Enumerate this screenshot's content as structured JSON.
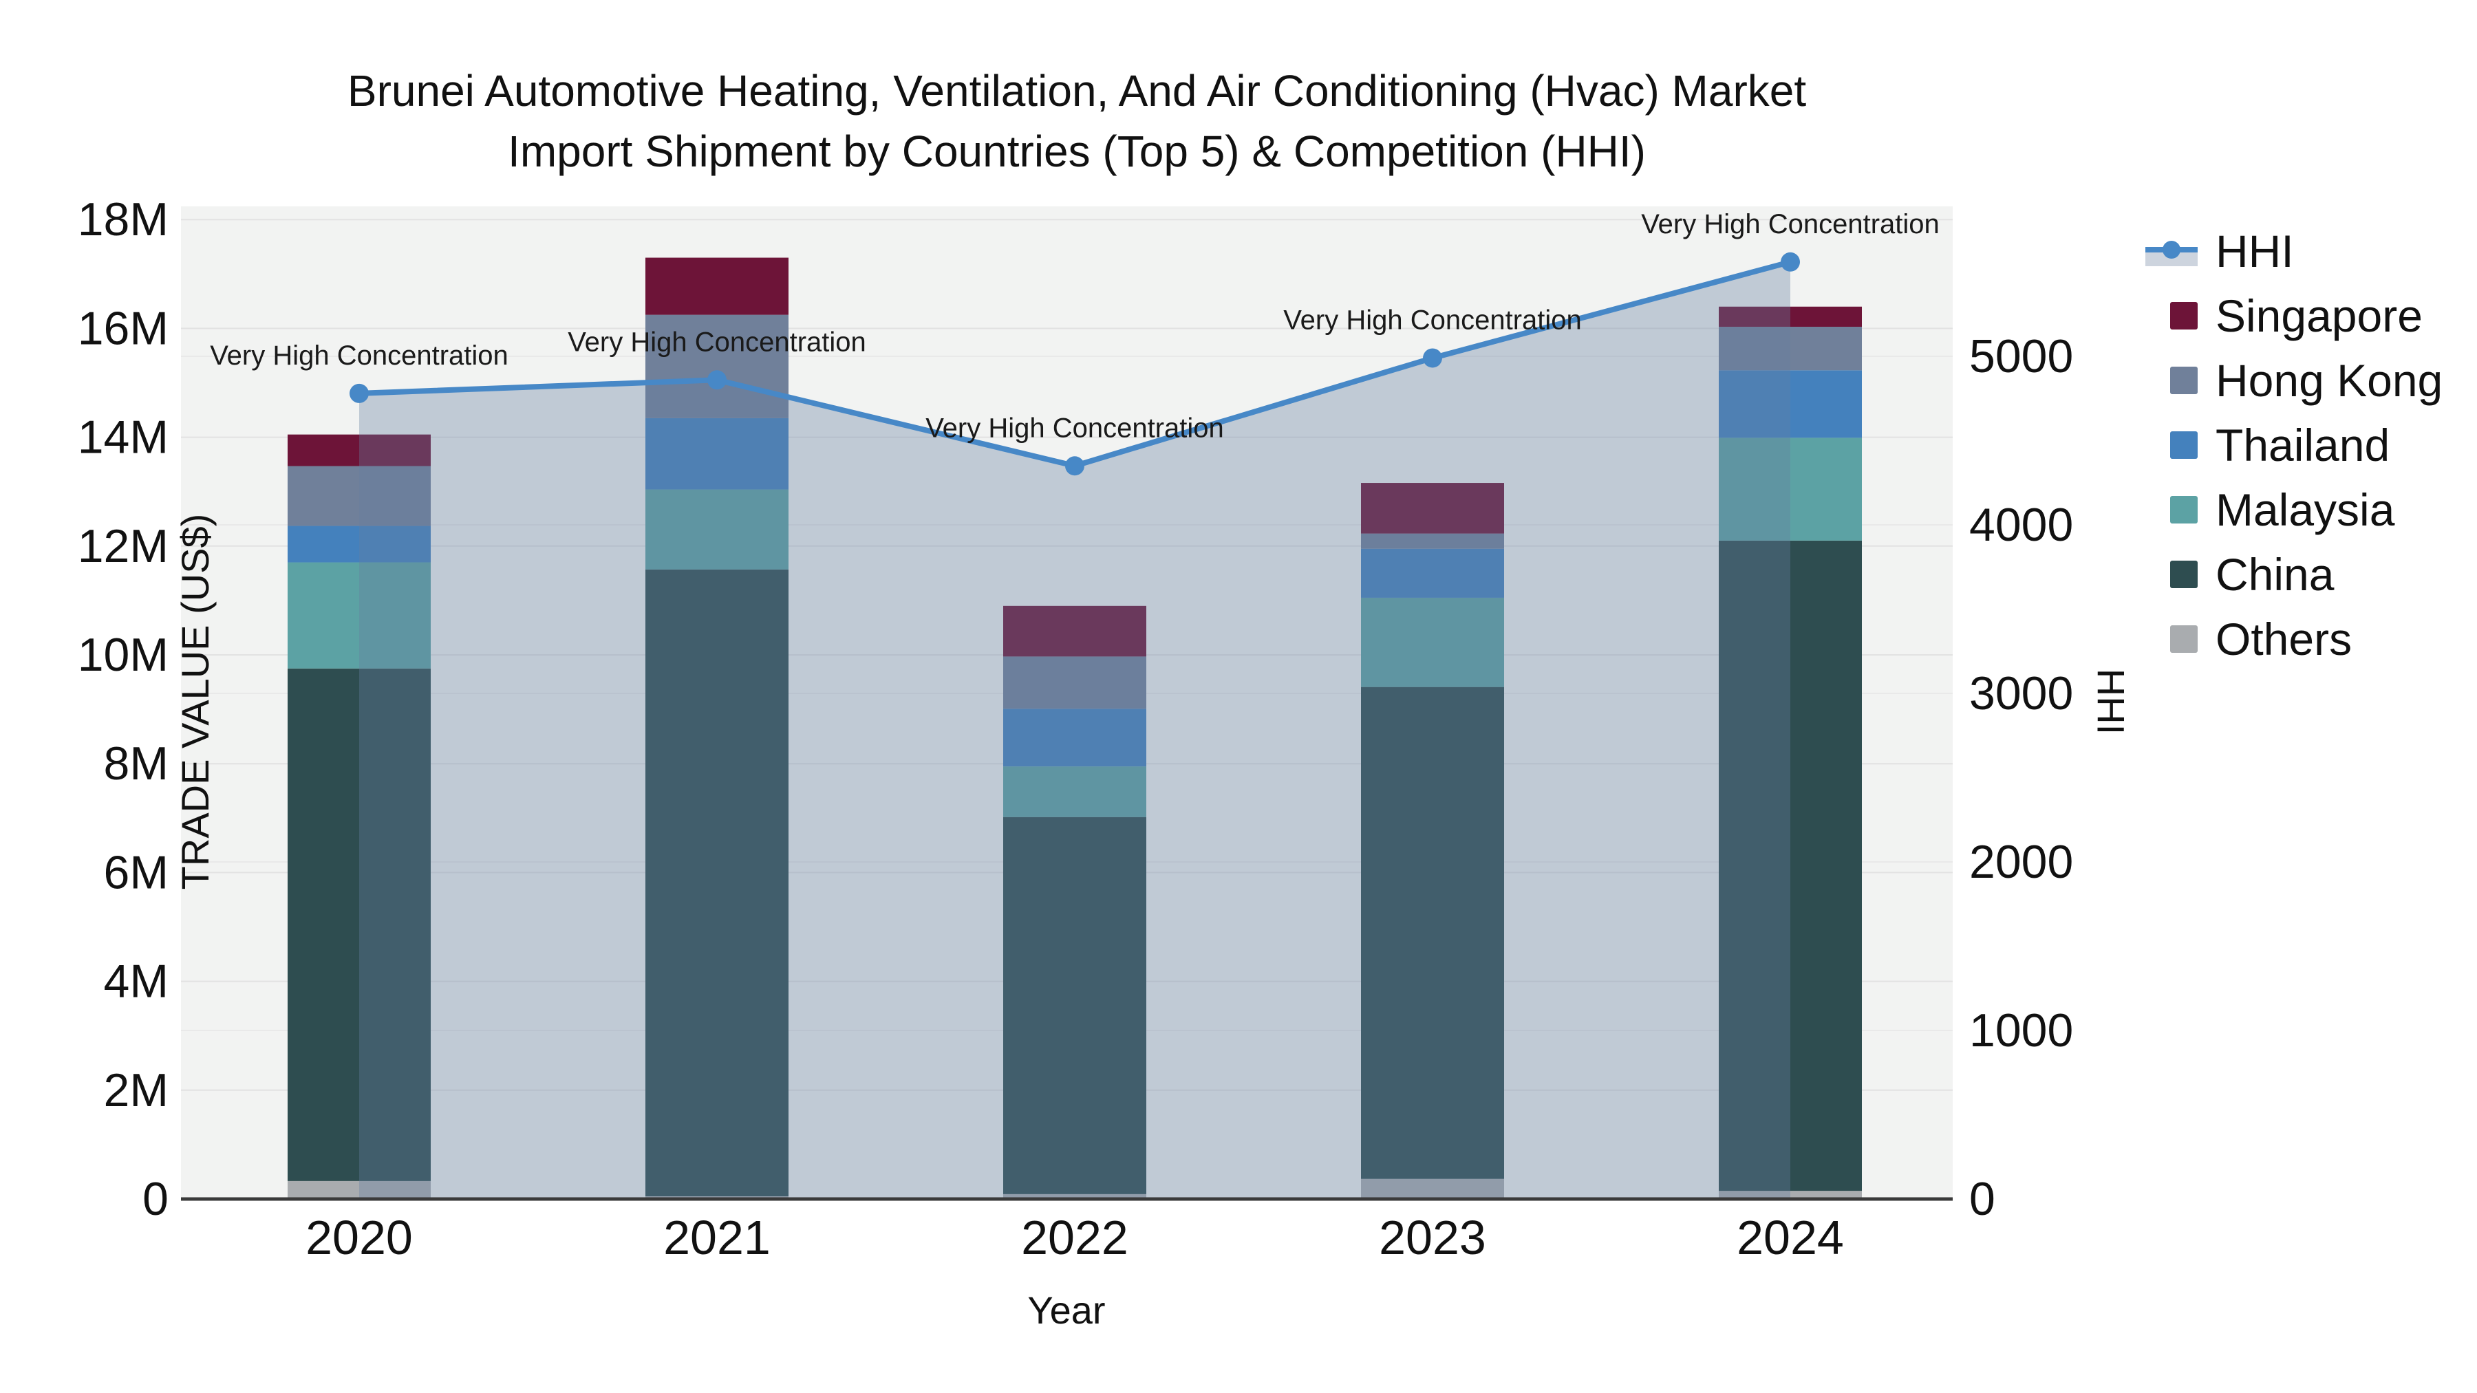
{
  "title": {
    "line1": "Brunei Automotive Heating, Ventilation, And Air Conditioning (Hvac) Market",
    "line2": "Import Shipment by Countries (Top 5) & Competition (HHI)"
  },
  "axes": {
    "left": {
      "title": "TRADE VALUE (US$)",
      "ticks": [
        "0",
        "2M",
        "4M",
        "6M",
        "8M",
        "10M",
        "12M",
        "14M",
        "16M",
        "18M"
      ]
    },
    "right": {
      "title": "HHI",
      "ticks": [
        "0",
        "1000",
        "2000",
        "3000",
        "4000",
        "5000"
      ]
    },
    "x": {
      "title": "Year",
      "ticks": [
        "2020",
        "2021",
        "2022",
        "2023",
        "2024"
      ]
    }
  },
  "legend": {
    "items": [
      {
        "label": "HHI",
        "type": "line",
        "color": "#4788c7"
      },
      {
        "label": "Singapore",
        "type": "square",
        "color": "#6d1438"
      },
      {
        "label": "Hong Kong",
        "type": "square",
        "color": "#70809a"
      },
      {
        "label": "Thailand",
        "type": "square",
        "color": "#4481bd"
      },
      {
        "label": "Malaysia",
        "type": "square",
        "color": "#5ca2a4"
      },
      {
        "label": "China",
        "type": "square",
        "color": "#2e4d50"
      },
      {
        "label": "Others",
        "type": "square",
        "color": "#a9acaf"
      }
    ]
  },
  "colors": {
    "hhi_line": "#4788c7",
    "hhi_area_fill": "rgba(100,125,160,0.35)",
    "hhi_area_legend_band": "#cdd4de",
    "plot_bg": "#f2f3f2",
    "grid_primary": "#e2e2e2",
    "grid_secondary": "#e9e9e9",
    "axis_line": "#3a3a3a",
    "annotation_text": "#1a1a1a"
  },
  "chart_data": {
    "type": "combo",
    "subtype": "stacked-bar + line-with-area",
    "x": [
      2020,
      2021,
      2022,
      2023,
      2024
    ],
    "x_title": "Year",
    "y_left_title": "TRADE VALUE (US$)",
    "y_left_units": "millions USD",
    "y_left_range": [
      0,
      18
    ],
    "y_right_title": "HHI",
    "y_right_range": [
      0,
      5880
    ],
    "grid": true,
    "legend_position": "right",
    "bar_stack_order_bottom_to_top": [
      "Others",
      "China",
      "Malaysia",
      "Thailand",
      "Hong Kong",
      "Singapore"
    ],
    "bar_series": [
      {
        "name": "Others",
        "color": "#a9acaf",
        "values": [
          0.33,
          0.05,
          0.09,
          0.37,
          0.15
        ]
      },
      {
        "name": "China",
        "color": "#2e4d50",
        "values": [
          9.42,
          11.52,
          6.93,
          9.04,
          11.95
        ]
      },
      {
        "name": "Malaysia",
        "color": "#5ca2a4",
        "values": [
          1.95,
          1.47,
          0.93,
          1.64,
          1.89
        ]
      },
      {
        "name": "Thailand",
        "color": "#4481bd",
        "values": [
          0.67,
          1.31,
          1.06,
          0.9,
          1.24
        ]
      },
      {
        "name": "Hong Kong",
        "color": "#70809a",
        "values": [
          1.1,
          1.9,
          0.96,
          0.28,
          0.8
        ]
      },
      {
        "name": "Singapore",
        "color": "#6d1438",
        "values": [
          0.58,
          1.05,
          0.93,
          0.93,
          0.37
        ]
      }
    ],
    "bar_totals": [
      14.05,
      17.3,
      10.9,
      13.16,
      16.4
    ],
    "line_series": {
      "name": "HHI",
      "color": "#4788c7",
      "area": true,
      "values": [
        4780,
        4860,
        4350,
        4990,
        5560
      ]
    },
    "annotations": [
      "Very High Concentration",
      "Very High Concentration",
      "Very High Concentration",
      "Very High Concentration",
      "Very High Concentration"
    ]
  }
}
